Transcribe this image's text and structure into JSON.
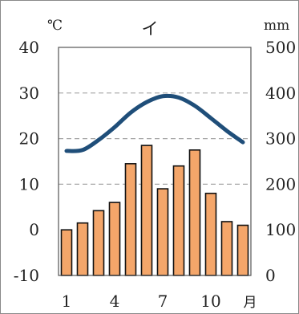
{
  "chart_data": {
    "type": "bar",
    "title": "イ",
    "x_label": "月",
    "categories": [
      1,
      2,
      3,
      4,
      5,
      6,
      7,
      8,
      9,
      10,
      11,
      12
    ],
    "x_tick_labels": [
      "1",
      "4",
      "7",
      "10"
    ],
    "x_tick_months": [
      1,
      4,
      7,
      10
    ],
    "temperature": {
      "unit": "℃",
      "ylim": [
        -10,
        40
      ],
      "ticks": [
        40,
        30,
        20,
        10,
        0,
        -10
      ],
      "values": [
        17.3,
        17.5,
        19.7,
        22.5,
        25.7,
        28.0,
        29.3,
        29.0,
        27.2,
        24.5,
        21.7,
        19.2
      ],
      "color": "#1f4e79"
    },
    "precipitation": {
      "unit": "mm",
      "ylim": [
        0,
        500
      ],
      "ticks": [
        500,
        400,
        300,
        200,
        100,
        0
      ],
      "values": [
        100,
        115,
        142,
        160,
        245,
        285,
        190,
        240,
        275,
        180,
        118,
        110
      ],
      "color": "#f4a66a"
    },
    "grid": {
      "style": "dashed",
      "temperature_values": [
        30,
        20,
        10
      ]
    },
    "legend": "none"
  }
}
